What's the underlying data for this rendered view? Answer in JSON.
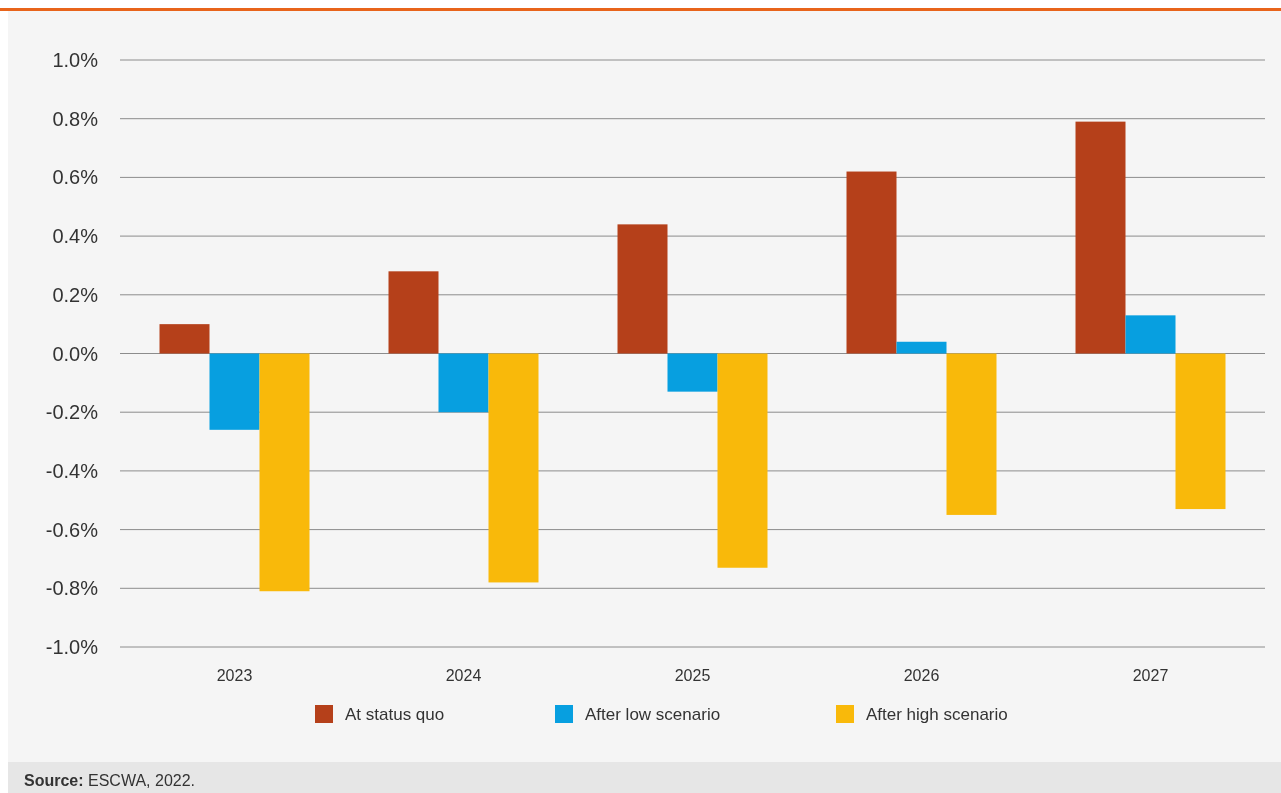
{
  "chart_data": {
    "type": "bar",
    "categories": [
      "2023",
      "2024",
      "2025",
      "2026",
      "2027"
    ],
    "series": [
      {
        "name": "At status quo",
        "color": "#b5401a",
        "values": [
          0.1,
          0.28,
          0.44,
          0.62,
          0.79
        ]
      },
      {
        "name": "After low scenario",
        "color": "#079fe0",
        "values": [
          -0.26,
          -0.2,
          -0.13,
          0.04,
          0.13
        ]
      },
      {
        "name": "After high scenario",
        "color": "#f9b90a",
        "values": [
          -0.81,
          -0.78,
          -0.73,
          -0.55,
          -0.53
        ]
      }
    ],
    "ylim": [
      -1,
      1
    ],
    "yticks": [
      {
        "value": -1,
        "label": "-1.0%"
      },
      {
        "value": -0.8,
        "label": "-0.8%"
      },
      {
        "value": -0.6,
        "label": "-0.6%"
      },
      {
        "value": -0.4,
        "label": "-0.4%"
      },
      {
        "value": -0.2,
        "label": "-0.2%"
      },
      {
        "value": 0,
        "label": "0.0%"
      },
      {
        "value": 0.2,
        "label": "0.2%"
      },
      {
        "value": 0.4,
        "label": "0.4%"
      },
      {
        "value": 0.6,
        "label": "0.6%"
      },
      {
        "value": 0.8,
        "label": "0.8%"
      },
      {
        "value": 1,
        "label": "1.0%"
      }
    ],
    "grid": "y",
    "legend": "bottom",
    "annotations": [
      "Source: ESCWA, 2022."
    ]
  }
}
